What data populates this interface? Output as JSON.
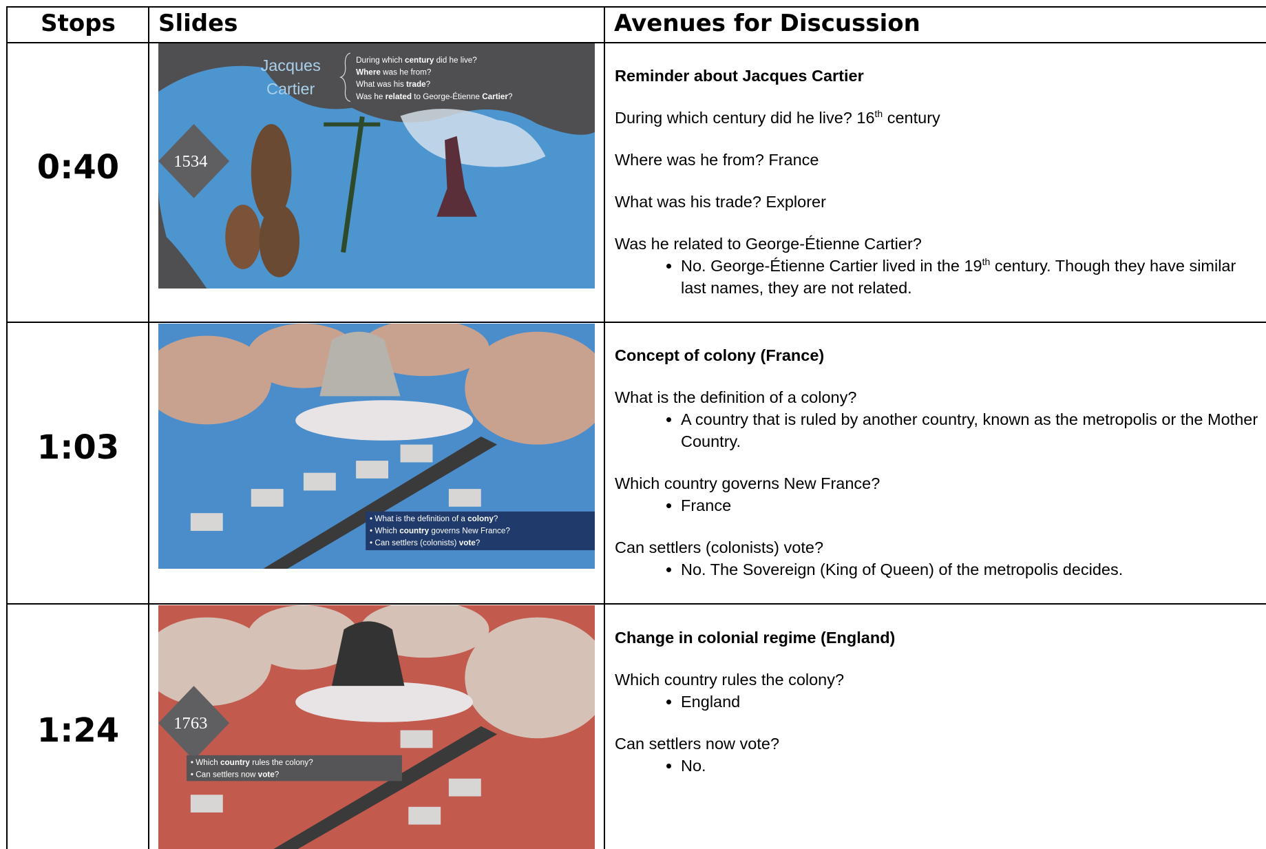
{
  "header": {
    "stops": "Stops",
    "slides": "Slides",
    "avenues": "Avenues for Discussion"
  },
  "rows": [
    {
      "stop": "0:40",
      "slide": {
        "year": "1534",
        "name": [
          "Jacques",
          "Cartier"
        ],
        "lines": [
          [
            "During which ",
            "century",
            " did he live?"
          ],
          [
            "",
            "Where",
            " was he from?"
          ],
          [
            "What was his ",
            "trade",
            "?"
          ],
          [
            "Was he ",
            "related",
            " to George-Étienne ",
            "Cartier",
            "?"
          ]
        ]
      },
      "heading": "Reminder about Jacques Cartier",
      "blocks": [
        {
          "q": [
            "During which century did he live? 16",
            {
              "sup": "th"
            },
            " century"
          ],
          "bullets": []
        },
        {
          "q": [
            "Where was he from?  France"
          ],
          "bullets": []
        },
        {
          "q": [
            "What was his trade?  Explorer"
          ],
          "bullets": []
        },
        {
          "q": [
            "Was he related to George-Étienne Cartier?"
          ],
          "bullets": [
            [
              "No. George-Étienne Cartier lived in the 19",
              {
                "sup": "th"
              },
              " century. Though they have similar last names, they are not related."
            ]
          ]
        }
      ]
    },
    {
      "stop": "1:03",
      "slide": {
        "lines": [
          [
            "What is the definition of a ",
            "colony",
            "?"
          ],
          [
            "Which ",
            "country",
            " governs New France?"
          ],
          [
            "Can settlers (colonists) ",
            "vote",
            "?"
          ]
        ]
      },
      "heading": "Concept of colony (France)",
      "blocks": [
        {
          "q": [
            "What is the definition of a colony?"
          ],
          "bullets": [
            [
              "A country that is ruled by another country, known as the metropolis or the Mother Country."
            ]
          ]
        },
        {
          "q": [
            "Which country governs New France?"
          ],
          "bullets": [
            [
              "France"
            ]
          ]
        },
        {
          "q": [
            "Can settlers (colonists) vote?"
          ],
          "bullets": [
            [
              "No. The Sovereign (King of Queen) of the metropolis decides."
            ]
          ]
        }
      ]
    },
    {
      "stop": "1:24",
      "slide": {
        "year": "1763",
        "lines": [
          [
            "Which ",
            "country",
            " rules the colony?"
          ],
          [
            "Can settlers now ",
            "vote",
            "?"
          ]
        ]
      },
      "heading": "Change in colonial regime (England)",
      "blocks": [
        {
          "q": [
            "Which country rules the colony?"
          ],
          "bullets": [
            [
              "England"
            ]
          ]
        },
        {
          "q": [
            "Can settlers now vote?"
          ],
          "bullets": [
            [
              "No."
            ]
          ]
        }
      ]
    }
  ]
}
